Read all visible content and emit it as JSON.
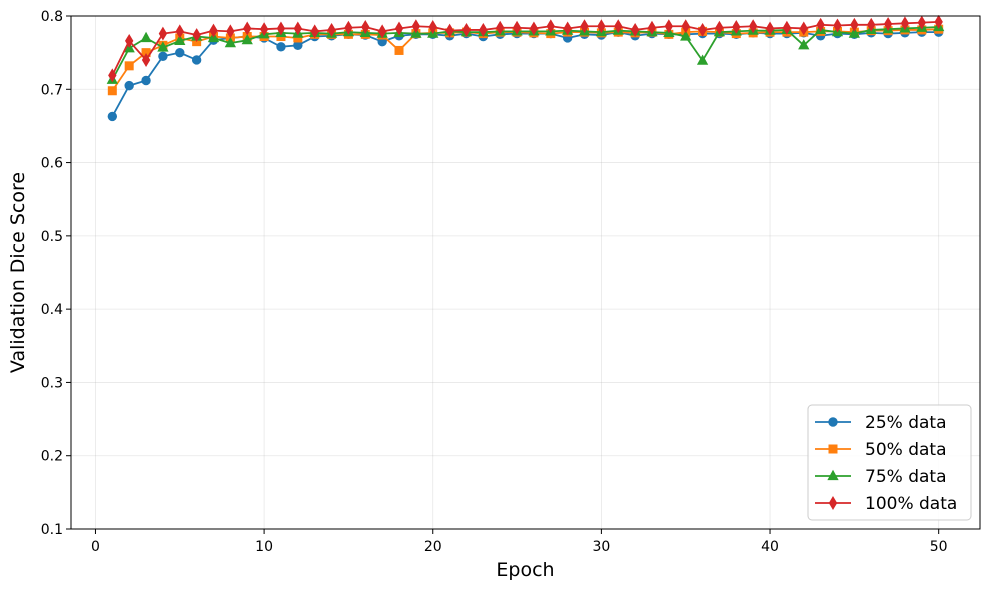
{
  "chart_data": {
    "type": "line",
    "title": "",
    "xlabel": "Epoch",
    "ylabel": "Validation Dice Score",
    "xlim": [
      -1.45,
      52.45
    ],
    "ylim": [
      0.1,
      0.8
    ],
    "xticks": [
      0,
      10,
      20,
      30,
      40,
      50
    ],
    "yticks": [
      0.1,
      0.2,
      0.3,
      0.4,
      0.5,
      0.6,
      0.7,
      0.8
    ],
    "xtick_labels": [
      "0",
      "10",
      "20",
      "30",
      "40",
      "50"
    ],
    "ytick_labels": [
      "0.1",
      "0.2",
      "0.3",
      "0.4",
      "0.5",
      "0.6",
      "0.7",
      "0.8"
    ],
    "grid": true,
    "legend_position": "lower-right",
    "x": [
      1,
      2,
      3,
      4,
      5,
      6,
      7,
      8,
      9,
      10,
      11,
      12,
      13,
      14,
      15,
      16,
      17,
      18,
      19,
      20,
      21,
      22,
      23,
      24,
      25,
      26,
      27,
      28,
      29,
      30,
      31,
      32,
      33,
      34,
      35,
      36,
      37,
      38,
      39,
      40,
      41,
      42,
      43,
      44,
      45,
      46,
      47,
      48,
      49,
      50
    ],
    "series": [
      {
        "name": "25% data",
        "color": "#1f77b4",
        "marker": "circle",
        "values": [
          0.663,
          0.705,
          0.712,
          0.745,
          0.75,
          0.74,
          0.767,
          0.77,
          0.772,
          0.77,
          0.758,
          0.76,
          0.772,
          0.773,
          0.775,
          0.774,
          0.765,
          0.773,
          0.775,
          0.775,
          0.773,
          0.776,
          0.772,
          0.775,
          0.776,
          0.776,
          0.776,
          0.77,
          0.775,
          0.774,
          0.778,
          0.773,
          0.776,
          0.775,
          0.775,
          0.776,
          0.776,
          0.775,
          0.777,
          0.776,
          0.776,
          0.777,
          0.773,
          0.776,
          0.775,
          0.777,
          0.776,
          0.777,
          0.778,
          0.778
        ]
      },
      {
        "name": "50% data",
        "color": "#ff7f0e",
        "marker": "square",
        "values": [
          0.698,
          0.732,
          0.75,
          0.76,
          0.77,
          0.765,
          0.772,
          0.77,
          0.772,
          0.772,
          0.772,
          0.77,
          0.775,
          0.775,
          0.775,
          0.775,
          0.774,
          0.753,
          0.776,
          0.777,
          0.777,
          0.778,
          0.776,
          0.778,
          0.778,
          0.777,
          0.776,
          0.778,
          0.778,
          0.777,
          0.778,
          0.777,
          0.778,
          0.775,
          0.778,
          0.779,
          0.778,
          0.776,
          0.777,
          0.778,
          0.778,
          0.778,
          0.779,
          0.779,
          0.778,
          0.78,
          0.78,
          0.781,
          0.781,
          0.782
        ]
      },
      {
        "name": "75% data",
        "color": "#2ca02c",
        "marker": "triangle",
        "values": [
          0.713,
          0.756,
          0.77,
          0.757,
          0.766,
          0.772,
          0.77,
          0.763,
          0.767,
          0.775,
          0.777,
          0.776,
          0.777,
          0.776,
          0.778,
          0.777,
          0.776,
          0.777,
          0.776,
          0.776,
          0.779,
          0.778,
          0.778,
          0.779,
          0.779,
          0.779,
          0.779,
          0.78,
          0.779,
          0.778,
          0.78,
          0.779,
          0.778,
          0.777,
          0.772,
          0.739,
          0.778,
          0.779,
          0.78,
          0.78,
          0.781,
          0.76,
          0.781,
          0.778,
          0.776,
          0.781,
          0.782,
          0.783,
          0.784,
          0.785
        ]
      },
      {
        "name": "100% data",
        "color": "#d62728",
        "marker": "diamond",
        "values": [
          0.719,
          0.766,
          0.74,
          0.776,
          0.779,
          0.774,
          0.78,
          0.779,
          0.783,
          0.782,
          0.783,
          0.783,
          0.779,
          0.781,
          0.784,
          0.785,
          0.779,
          0.783,
          0.786,
          0.785,
          0.78,
          0.781,
          0.781,
          0.784,
          0.784,
          0.783,
          0.786,
          0.783,
          0.786,
          0.786,
          0.786,
          0.781,
          0.784,
          0.786,
          0.786,
          0.781,
          0.784,
          0.785,
          0.786,
          0.783,
          0.784,
          0.783,
          0.788,
          0.787,
          0.788,
          0.788,
          0.789,
          0.79,
          0.791,
          0.792
        ]
      }
    ]
  }
}
